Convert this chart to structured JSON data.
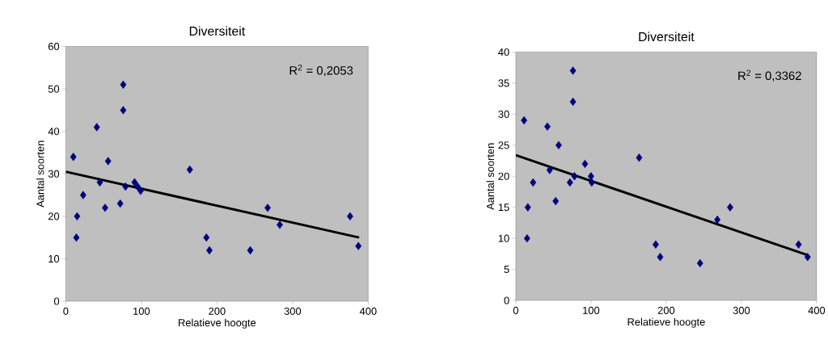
{
  "chart_data": [
    {
      "type": "scatter",
      "title": "Diversiteit",
      "xlabel": "Relatieve hoogte",
      "ylabel": "Aantal soorten",
      "xlim": [
        0,
        400
      ],
      "ylim": [
        0,
        60
      ],
      "xticks": [
        0,
        100,
        200,
        300,
        400
      ],
      "yticks": [
        0,
        10,
        20,
        30,
        40,
        50,
        60
      ],
      "annotations": [
        "R$^{2}$ = 0,2053"
      ],
      "series": [
        {
          "color": "#000080",
          "marker": "diamond",
          "x": [
            10,
            15,
            14,
            23,
            41,
            45,
            52,
            56,
            72,
            76,
            76,
            79,
            91,
            95,
            99,
            164,
            186,
            190,
            244,
            267,
            283,
            376,
            387
          ],
          "values": [
            34,
            20,
            15,
            25,
            41,
            28,
            22,
            33,
            23,
            51,
            45,
            27,
            28,
            27,
            26,
            31,
            15,
            12,
            12,
            22,
            18,
            20,
            13
          ]
        },
        {
          "type": "line",
          "color": "#000000",
          "marker": "none",
          "x": [
            0,
            388
          ],
          "values": [
            30.5,
            15
          ]
        }
      ]
    },
    {
      "type": "scatter",
      "title": "Diversiteit",
      "xlabel": "Relatieve hoogte",
      "ylabel": "Aantal soorten",
      "xlim": [
        0,
        400
      ],
      "ylim": [
        0,
        40
      ],
      "xticks": [
        0,
        100,
        200,
        300,
        400
      ],
      "yticks": [
        0,
        5,
        10,
        15,
        20,
        25,
        30,
        35,
        40
      ],
      "annotations": [
        "R$^{2}$ = 0,3362"
      ],
      "series": [
        {
          "color": "#000080",
          "marker": "diamond",
          "x": [
            11,
            16,
            15,
            23,
            42,
            45,
            53,
            57,
            72,
            78,
            76,
            76,
            92,
            100,
            101,
            164,
            186,
            192,
            245,
            268,
            285,
            376,
            388
          ],
          "values": [
            29,
            15,
            10,
            19,
            28,
            21,
            16,
            25,
            19,
            20,
            37,
            32,
            22,
            20,
            19,
            23,
            9,
            7,
            6,
            13,
            15,
            9,
            7
          ]
        },
        {
          "type": "line",
          "color": "#000000",
          "marker": "none",
          "x": [
            0,
            388
          ],
          "values": [
            23.4,
            7.3
          ]
        }
      ]
    }
  ]
}
